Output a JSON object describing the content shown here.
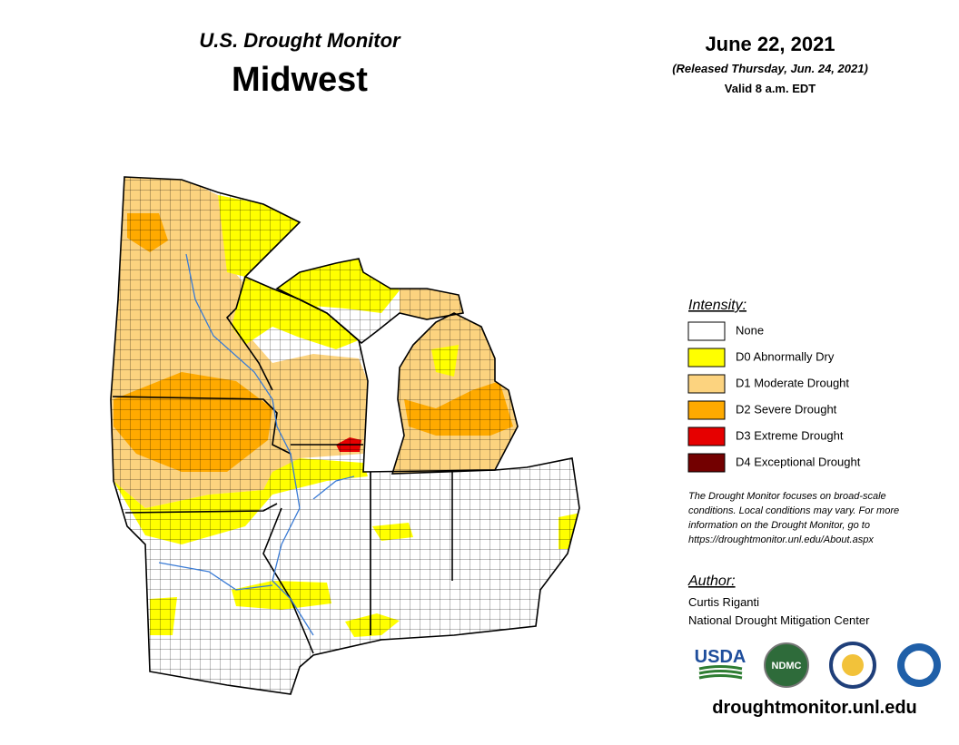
{
  "header": {
    "series": "U.S. Drought Monitor",
    "region": "Midwest"
  },
  "date": {
    "date": "June 22, 2021",
    "released": "(Released Thursday, Jun. 24, 2021)",
    "valid": "Valid 8 a.m. EDT"
  },
  "legend": {
    "title": "Intensity:",
    "items": [
      {
        "label": "None",
        "color": "#ffffff"
      },
      {
        "label": "D0 Abnormally Dry",
        "color": "#ffff00"
      },
      {
        "label": "D1 Moderate Drought",
        "color": "#fcd37f"
      },
      {
        "label": "D2 Severe Drought",
        "color": "#ffaa00"
      },
      {
        "label": "D3 Extreme Drought",
        "color": "#e60000"
      },
      {
        "label": "D4 Exceptional Drought",
        "color": "#730000"
      }
    ]
  },
  "note": [
    "The Drought Monitor focuses on broad-scale",
    "conditions. Local conditions may vary. For more",
    "information on the Drought Monitor, go to",
    "https://droughtmonitor.unl.edu/About.aspx"
  ],
  "author": {
    "title": "Author:",
    "name": "Curtis Riganti",
    "organization": "National Drought Mitigation Center"
  },
  "logos": [
    "USDA",
    "NDMC",
    "NOAA"
  ],
  "url": "droughtmonitor.unl.edu"
}
